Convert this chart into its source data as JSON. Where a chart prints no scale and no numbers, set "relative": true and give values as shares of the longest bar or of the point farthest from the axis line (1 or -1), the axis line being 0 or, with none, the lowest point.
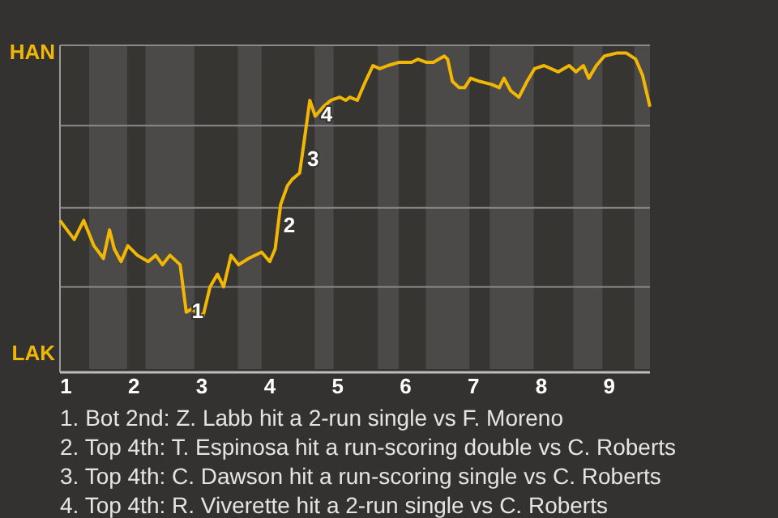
{
  "chart_data": {
    "type": "line",
    "color": "#f2b705",
    "relative": true,
    "x": [
      0.91,
      1.12,
      1.26,
      1.41,
      1.55,
      1.64,
      1.71,
      1.81,
      1.91,
      2.05,
      2.21,
      2.32,
      2.42,
      2.53,
      2.68,
      2.77,
      2.85,
      2.92,
      3.02,
      3.12,
      3.23,
      3.32,
      3.43,
      3.54,
      3.69,
      3.88,
      4.0,
      4.08,
      4.16,
      4.26,
      4.33,
      4.44,
      4.5,
      4.59,
      4.67,
      4.79,
      4.9,
      5.03,
      5.12,
      5.18,
      5.29,
      5.41,
      5.52,
      5.62,
      5.74,
      5.9,
      6.09,
      6.18,
      6.31,
      6.41,
      6.57,
      6.62,
      6.69,
      6.79,
      6.87,
      6.96,
      7.09,
      7.27,
      7.38,
      7.45,
      7.55,
      7.67,
      7.79,
      7.9,
      8.04,
      8.25,
      8.41,
      8.51,
      8.62,
      8.7,
      8.81,
      8.93,
      9.12,
      9.25,
      9.39,
      9.49,
      9.6
    ],
    "values": [
      0.47,
      0.41,
      0.47,
      0.39,
      0.35,
      0.44,
      0.38,
      0.34,
      0.39,
      0.36,
      0.34,
      0.36,
      0.33,
      0.36,
      0.33,
      0.18,
      0.19,
      0.18,
      0.17,
      0.26,
      0.3,
      0.26,
      0.36,
      0.33,
      0.35,
      0.37,
      0.34,
      0.38,
      0.52,
      0.58,
      0.6,
      0.62,
      0.71,
      0.85,
      0.8,
      0.83,
      0.85,
      0.86,
      0.85,
      0.86,
      0.85,
      0.91,
      0.96,
      0.95,
      0.96,
      0.97,
      0.97,
      0.98,
      0.97,
      0.97,
      0.99,
      0.98,
      0.91,
      0.89,
      0.89,
      0.92,
      0.91,
      0.9,
      0.89,
      0.92,
      0.88,
      0.86,
      0.91,
      0.95,
      0.96,
      0.94,
      0.96,
      0.94,
      0.96,
      0.92,
      0.96,
      0.99,
      1,
      1,
      0.98,
      0.93,
      0.83
    ],
    "xlim": [
      0.91,
      9.6
    ],
    "xticks": [
      1,
      2,
      3,
      4,
      5,
      6,
      7,
      8,
      9
    ],
    "marker": "none",
    "line_style": "solid",
    "ref_lines": [
      {
        "axis": "y",
        "value": 0.26,
        "color": "#8a8a88"
      },
      {
        "axis": "y",
        "value": 0.51,
        "color": "#8a8a88"
      },
      {
        "axis": "y",
        "value": 0.77,
        "color": "#8a8a88"
      }
    ],
    "bands": [
      {
        "axis": "x",
        "from": 1.34,
        "to": 1.9,
        "color": "#4b4a48"
      },
      {
        "axis": "x",
        "from": 2.17,
        "to": 2.89,
        "color": "#4b4a48"
      },
      {
        "axis": "x",
        "from": 3.53,
        "to": 3.88,
        "color": "#4b4a48"
      },
      {
        "axis": "x",
        "from": 4.66,
        "to": 4.94,
        "color": "#4b4a48"
      },
      {
        "axis": "x",
        "from": 5.59,
        "to": 5.9,
        "color": "#4b4a48"
      },
      {
        "axis": "x",
        "from": 6.3,
        "to": 6.94,
        "color": "#4b4a48"
      },
      {
        "axis": "x",
        "from": 7.24,
        "to": 7.89,
        "color": "#4b4a48"
      },
      {
        "axis": "x",
        "from": 8.47,
        "to": 8.9,
        "color": "#4b4a48"
      },
      {
        "axis": "x",
        "from": 9.37,
        "to": 9.6,
        "color": "#4b4a48"
      }
    ],
    "annotations": [
      "HAN",
      "LAK",
      {
        "text": "1",
        "x": 2.77,
        "y": 0.18
      },
      {
        "text": "2",
        "x": 4.12,
        "y": 0.45
      },
      {
        "text": "3",
        "x": 4.47,
        "y": 0.66
      },
      {
        "text": "4",
        "x": 4.67,
        "y": 0.8
      },
      "1. Bot 2nd: Z. Labb hit a 2-run single vs F. Moreno",
      "2. Top 4th: T. Espinosa hit a run-scoring double vs C. Roberts",
      "3. Top 4th: C. Dawson hit a run-scoring single vs C. Roberts",
      "4. Top 4th: R. Viverette hit a 2-run single vs C. Roberts"
    ]
  }
}
